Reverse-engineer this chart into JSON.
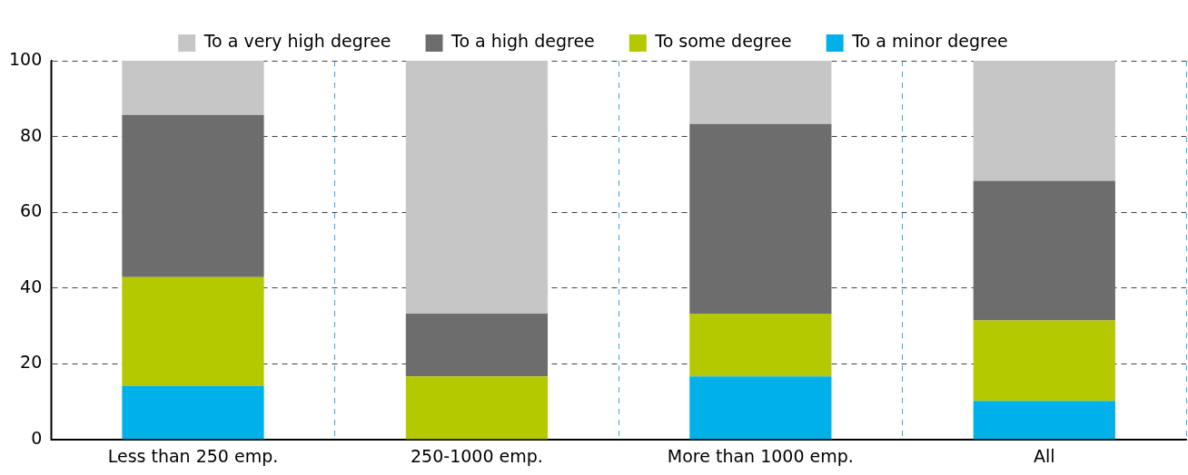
{
  "chart_data": {
    "type": "bar",
    "stacked": true,
    "categories": [
      "Less than 250 emp.",
      "250-1000 emp.",
      "More than 1000 emp.",
      "All"
    ],
    "series": [
      {
        "name": "To a minor degree",
        "color": "#00b0e8",
        "values": [
          14.3,
          0,
          16.7,
          10.3
        ]
      },
      {
        "name": "To some degree",
        "color": "#b5c900",
        "values": [
          28.6,
          16.7,
          16.6,
          21.2
        ]
      },
      {
        "name": "To a high degree",
        "color": "#6d6d6d",
        "values": [
          42.8,
          16.6,
          50,
          36.8
        ]
      },
      {
        "name": "To a very high degree",
        "color": "#c6c6c6",
        "values": [
          14.3,
          66.7,
          16.7,
          31.7
        ]
      }
    ],
    "ylim": [
      0,
      100
    ],
    "yticks": [
      0,
      20,
      40,
      60,
      80,
      100
    ],
    "grid": true,
    "legend": "top"
  }
}
